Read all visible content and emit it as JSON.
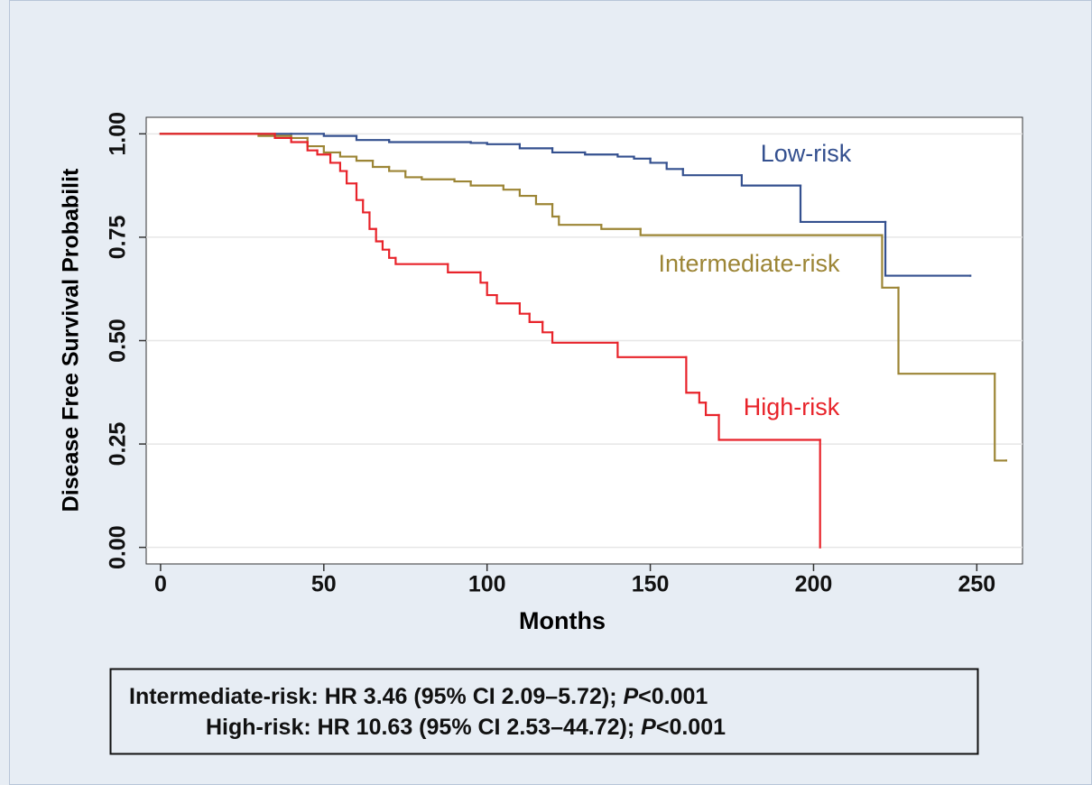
{
  "chart_data": {
    "type": "line",
    "step": "post",
    "xlabel": "Months",
    "ylabel": "Disease Free Survival Probabilit",
    "xlim": [
      -4.4,
      264
    ],
    "ylim": [
      -0.04,
      1.04
    ],
    "xticks": [
      0,
      50,
      100,
      150,
      200,
      250
    ],
    "yticks": [
      {
        "value": 0,
        "label": "0.00"
      },
      {
        "value": 0.25,
        "label": "0.25"
      },
      {
        "value": 0.5,
        "label": "0.50"
      },
      {
        "value": 0.75,
        "label": "0.75"
      },
      {
        "value": 1,
        "label": "1.00"
      }
    ],
    "grid": true,
    "series": [
      {
        "name": "Low-risk",
        "color": "#34508f",
        "x": [
          0,
          40,
          50,
          60,
          70,
          95,
          100,
          110,
          120,
          130,
          140,
          145,
          150,
          155,
          160,
          178,
          196,
          222,
          248
        ],
        "values": [
          1,
          1,
          0.995,
          0.985,
          0.98,
          0.978,
          0.975,
          0.965,
          0.955,
          0.95,
          0.945,
          0.94,
          0.93,
          0.915,
          0.9,
          0.875,
          0.787,
          0.657,
          0.657
        ]
      },
      {
        "name": "Intermediate-risk",
        "color": "#9c8535",
        "x": [
          0,
          30,
          40,
          45,
          50,
          55,
          60,
          65,
          70,
          75,
          80,
          90,
          95,
          105,
          110,
          115,
          120,
          122,
          135,
          147,
          221,
          226,
          255.5,
          259
        ],
        "values": [
          1,
          0.995,
          0.99,
          0.97,
          0.955,
          0.945,
          0.935,
          0.92,
          0.91,
          0.895,
          0.89,
          0.885,
          0.875,
          0.865,
          0.85,
          0.83,
          0.8,
          0.78,
          0.77,
          0.755,
          0.628,
          0.42,
          0.21,
          0.21
        ]
      },
      {
        "name": "High-risk",
        "color": "#e8232a",
        "x": [
          0,
          35,
          40,
          45,
          48,
          52,
          55,
          57,
          60,
          62,
          64,
          66,
          68,
          70,
          72,
          88,
          98,
          100,
          103,
          110,
          113,
          117,
          120,
          140,
          161,
          165,
          167,
          171,
          202
        ],
        "values": [
          1,
          0.99,
          0.98,
          0.96,
          0.95,
          0.93,
          0.91,
          0.88,
          0.84,
          0.81,
          0.77,
          0.74,
          0.72,
          0.7,
          0.685,
          0.665,
          0.64,
          0.61,
          0.59,
          0.565,
          0.545,
          0.52,
          0.495,
          0.46,
          0.374,
          0.35,
          0.32,
          0.26,
          0
        ]
      }
    ],
    "annotations": [
      {
        "text": "Low-risk",
        "color": "#34508f"
      },
      {
        "text": "Intermediate-risk",
        "color": "#9c8535"
      },
      {
        "text": "High-risk",
        "color": "#e8232a"
      }
    ],
    "stats_box": [
      {
        "label": "Intermediate-risk: HR 3.46 (95% CI 2.09–5.72); ",
        "p": "P",
        "p_value": "<0.001"
      },
      {
        "label": "High-risk: HR 10.63 (95% CI 2.53–44.72); ",
        "p": "P",
        "p_value": "<0.001"
      }
    ]
  }
}
